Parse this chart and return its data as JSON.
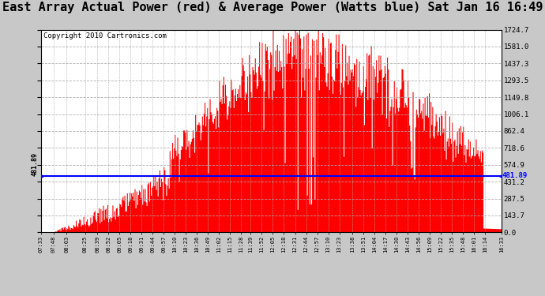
{
  "title": "East Array Actual Power (red) & Average Power (Watts blue) Sat Jan 16 16:49",
  "copyright": "Copyright 2010 Cartronics.com",
  "average_power": 481.89,
  "y_max": 1724.7,
  "y_min": 0.0,
  "y_ticks": [
    0.0,
    143.7,
    287.5,
    431.2,
    574.9,
    718.6,
    862.4,
    1006.1,
    1149.8,
    1293.5,
    1437.3,
    1581.0,
    1724.7
  ],
  "x_labels": [
    "07:33",
    "07:48",
    "08:03",
    "08:25",
    "08:39",
    "08:52",
    "09:05",
    "09:18",
    "09:31",
    "09:44",
    "09:57",
    "10:10",
    "10:23",
    "10:36",
    "10:49",
    "11:02",
    "11:15",
    "11:28",
    "11:39",
    "11:52",
    "12:05",
    "12:18",
    "12:31",
    "12:44",
    "12:57",
    "13:10",
    "13:23",
    "13:38",
    "13:51",
    "14:04",
    "14:17",
    "14:30",
    "14:43",
    "14:56",
    "15:09",
    "15:22",
    "15:35",
    "15:48",
    "16:01",
    "16:14",
    "16:33"
  ],
  "bar_color": "#ff0000",
  "line_color": "#0000ff",
  "bg_color": "#c8c8c8",
  "plot_bg": "#ffffff",
  "grid_color": "#aaaaaa",
  "title_fontsize": 11,
  "copyright_fontsize": 6.5
}
